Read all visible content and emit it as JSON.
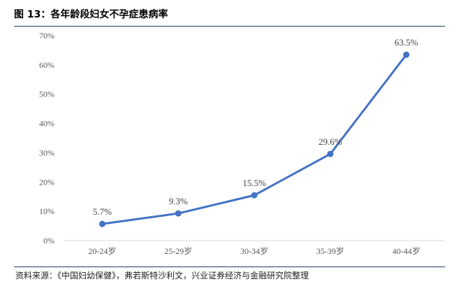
{
  "figure": {
    "title": "图 13：各年龄段妇女不孕症患病率",
    "source": "资料来源：《中国妇幼保健》，弗若斯特沙利文，兴业证券经济与金融研究院整理"
  },
  "chart_data": {
    "type": "line",
    "title": "",
    "categories": [
      "20-24岁",
      "25-29岁",
      "30-34岁",
      "35-39岁",
      "40-44岁"
    ],
    "series": [
      {
        "values": [
          5.7,
          9.3,
          15.5,
          29.6,
          63.5
        ]
      }
    ],
    "data_labels": [
      "5.7%",
      "9.3%",
      "15.5%",
      "29.6%",
      "63.5%"
    ],
    "y_ticks": [
      "0%",
      "10%",
      "20%",
      "30%",
      "40%",
      "50%",
      "60%",
      "70%"
    ],
    "ylim": [
      0,
      70
    ],
    "xlabel": "",
    "ylabel": "",
    "grid": false,
    "legend": "none",
    "colors": {
      "line": "#4472c4",
      "axis": "#d9d9d9"
    }
  }
}
